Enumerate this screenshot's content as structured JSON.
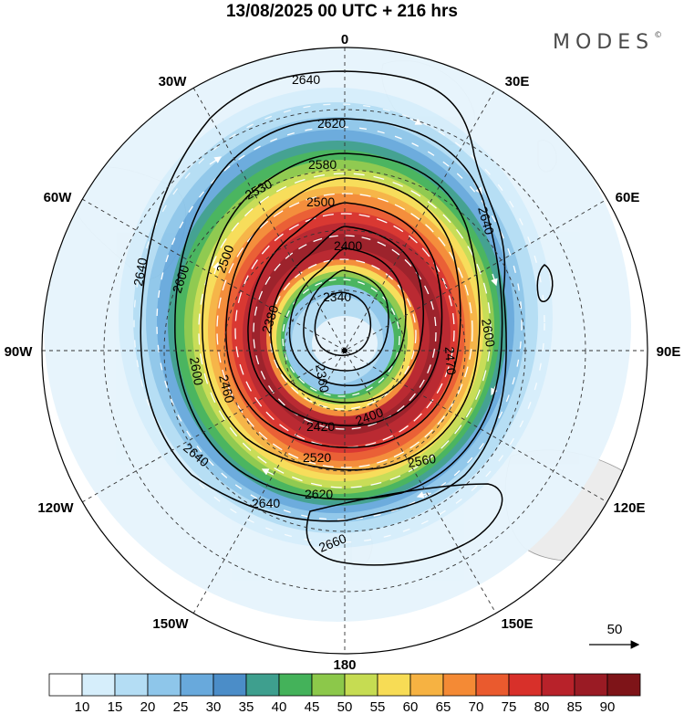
{
  "title": "13/08/2025  00 UTC  + 216 hrs",
  "brand": "MODES",
  "brand_mark": "©",
  "longitude_labels": {
    "top": "0",
    "upper_right": "30E",
    "right_upper": "60E",
    "right": "90E",
    "right_lower": "120E",
    "lower_right": "150E",
    "bottom": "180",
    "lower_left": "150W",
    "left_lower": "120W",
    "left": "90W",
    "left_upper": "60W",
    "upper_left": "30W"
  },
  "contour_labels": [
    "2640",
    "2620",
    "2580",
    "2530",
    "2500",
    "2400",
    "2340",
    "2380",
    "2360",
    "2420",
    "2400",
    "2520",
    "2560",
    "2620",
    "2640",
    "2640",
    "2660",
    "2600",
    "2600",
    "2640",
    "2640",
    "2600",
    "2500",
    "2460",
    "2470"
  ],
  "vector_reference": {
    "value": "50"
  },
  "colorbar": {
    "ticks": [
      "10",
      "15",
      "20",
      "25",
      "30",
      "35",
      "40",
      "45",
      "50",
      "55",
      "60",
      "65",
      "70",
      "75",
      "80",
      "85",
      "90"
    ],
    "colors": [
      "#ffffff",
      "#d6eefb",
      "#b4ddf4",
      "#8ec6ea",
      "#68a9dc",
      "#4b8dc8",
      "#3e9f8e",
      "#44b25a",
      "#8cc84a",
      "#c6dc52",
      "#f7dc55",
      "#f6b242",
      "#f48a35",
      "#ea5a2e",
      "#d8302a",
      "#b8222a",
      "#9a1b24",
      "#7e1418"
    ]
  }
}
